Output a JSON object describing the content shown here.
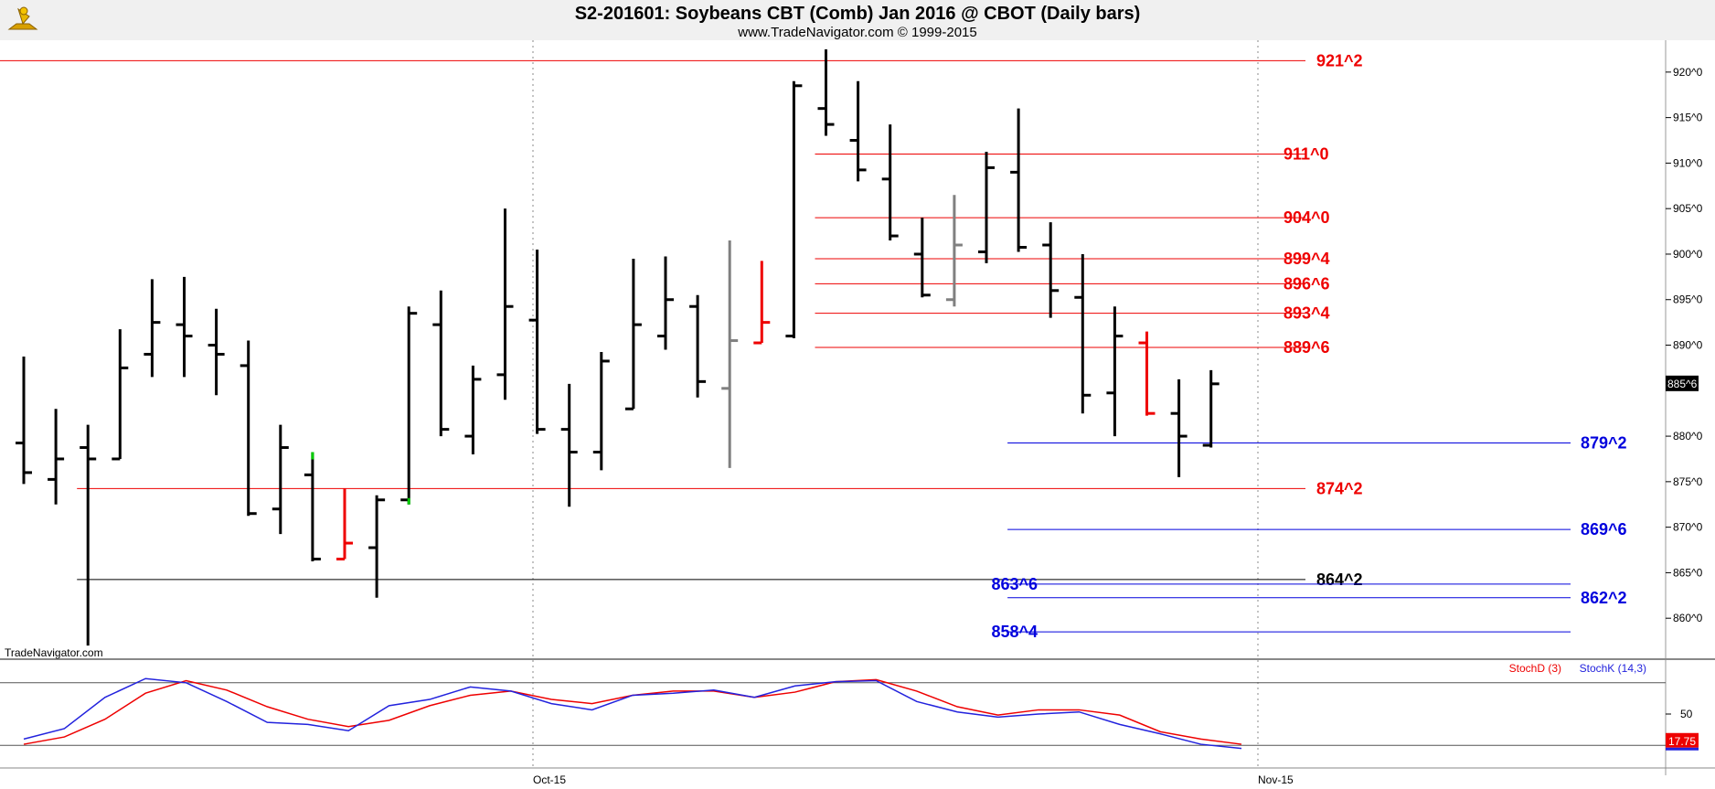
{
  "header": {
    "title": "S2-201601:  Soybeans CBT (Comb) Jan 2016 @ CBOT  (Daily bars)",
    "subtitle": "www.TradeNavigator.com © 1999-2015",
    "watermark": "TradeNavigator.com",
    "logo_icon": "sextant-logo-icon"
  },
  "chart_data": [
    {
      "type": "ohlc",
      "title": "S2-201601:  Soybeans CBT (Comb) Jan 2016 @ CBOT  (Daily bars)",
      "ylim": [
        855.5,
        923.5
      ],
      "y_ticks": [
        {
          "v": 920,
          "label": "920^0"
        },
        {
          "v": 915,
          "label": "915^0"
        },
        {
          "v": 910,
          "label": "910^0"
        },
        {
          "v": 905,
          "label": "905^0"
        },
        {
          "v": 900,
          "label": "900^0"
        },
        {
          "v": 895,
          "label": "895^0"
        },
        {
          "v": 890,
          "label": "890^0"
        },
        {
          "v": 880,
          "label": "880^0"
        },
        {
          "v": 875,
          "label": "875^0"
        },
        {
          "v": 870,
          "label": "870^0"
        },
        {
          "v": 865,
          "label": "865^0"
        },
        {
          "v": 860,
          "label": "860^0"
        }
      ],
      "x_labels": [
        {
          "i": 16,
          "label": "Oct-15"
        },
        {
          "i": 39,
          "label": "Nov-15"
        }
      ],
      "last_price": {
        "v": 885.75,
        "label": "885^6"
      },
      "bar_colors": {
        "normal": "#000000",
        "red": "#ee0000",
        "gray": "#808080",
        "green": "#00cc00"
      },
      "bars": [
        {
          "o": 879.25,
          "h": 888.75,
          "l": 874.75,
          "c": 876.0,
          "color": "normal"
        },
        {
          "o": 875.25,
          "h": 883.0,
          "l": 872.5,
          "c": 877.5,
          "color": "normal"
        },
        {
          "o": 878.75,
          "h": 881.25,
          "l": 857.0,
          "c": 877.5,
          "color": "normal"
        },
        {
          "o": 877.5,
          "h": 891.75,
          "l": 877.5,
          "c": 887.5,
          "color": "normal"
        },
        {
          "o": 889.0,
          "h": 897.25,
          "l": 886.5,
          "c": 892.5,
          "color": "normal"
        },
        {
          "o": 892.25,
          "h": 897.5,
          "l": 886.5,
          "c": 891.0,
          "color": "normal"
        },
        {
          "o": 890.0,
          "h": 894.0,
          "l": 884.5,
          "c": 889.0,
          "color": "normal"
        },
        {
          "o": 887.75,
          "h": 890.5,
          "l": 871.25,
          "c": 871.5,
          "color": "normal"
        },
        {
          "o": 872.0,
          "h": 881.25,
          "l": 869.25,
          "c": 878.75,
          "color": "normal"
        },
        {
          "o": 875.75,
          "h": 878.25,
          "l": 866.25,
          "c": 866.5,
          "color": "normal",
          "high_color": "green"
        },
        {
          "o": 866.5,
          "h": 874.25,
          "l": 866.5,
          "c": 868.25,
          "color": "red"
        },
        {
          "o": 867.75,
          "h": 873.5,
          "l": 862.25,
          "c": 873.0,
          "color": "normal"
        },
        {
          "o": 873.0,
          "h": 894.25,
          "l": 872.5,
          "c": 893.5,
          "color": "normal",
          "low_color": "green"
        },
        {
          "o": 892.25,
          "h": 896.0,
          "l": 880.0,
          "c": 880.75,
          "color": "normal"
        },
        {
          "o": 880.0,
          "h": 887.75,
          "l": 878.0,
          "c": 886.25,
          "color": "normal"
        },
        {
          "o": 886.75,
          "h": 905.0,
          "l": 884.0,
          "c": 894.25,
          "color": "normal"
        },
        {
          "o": 892.75,
          "h": 900.5,
          "l": 880.25,
          "c": 880.75,
          "color": "normal"
        },
        {
          "o": 880.75,
          "h": 885.75,
          "l": 872.25,
          "c": 878.25,
          "color": "normal"
        },
        {
          "o": 878.25,
          "h": 889.25,
          "l": 876.25,
          "c": 888.25,
          "color": "normal"
        },
        {
          "o": 883.0,
          "h": 899.5,
          "l": 883.0,
          "c": 892.25,
          "color": "normal"
        },
        {
          "o": 891.0,
          "h": 899.75,
          "l": 889.5,
          "c": 895.0,
          "color": "normal"
        },
        {
          "o": 894.25,
          "h": 895.5,
          "l": 884.25,
          "c": 886.0,
          "color": "normal"
        },
        {
          "o": 885.25,
          "h": 901.5,
          "l": 876.5,
          "c": 890.5,
          "color": "gray"
        },
        {
          "o": 890.25,
          "h": 899.25,
          "l": 890.25,
          "c": 892.5,
          "color": "red"
        },
        {
          "o": 891.0,
          "h": 919.0,
          "l": 890.75,
          "c": 918.5,
          "color": "normal"
        },
        {
          "o": 916.0,
          "h": 922.5,
          "l": 913.0,
          "c": 914.25,
          "color": "normal"
        },
        {
          "o": 912.5,
          "h": 919.0,
          "l": 908.0,
          "c": 909.25,
          "color": "normal"
        },
        {
          "o": 908.25,
          "h": 914.25,
          "l": 901.5,
          "c": 902.0,
          "color": "normal"
        },
        {
          "o": 900.0,
          "h": 904.0,
          "l": 895.25,
          "c": 895.5,
          "color": "normal"
        },
        {
          "o": 895.0,
          "h": 906.5,
          "l": 894.25,
          "c": 901.0,
          "color": "gray"
        },
        {
          "o": 900.25,
          "h": 911.25,
          "l": 899.0,
          "c": 909.5,
          "color": "normal"
        },
        {
          "o": 909.0,
          "h": 916.0,
          "l": 900.25,
          "c": 900.75,
          "color": "normal"
        },
        {
          "o": 901.0,
          "h": 903.5,
          "l": 893.0,
          "c": 896.0,
          "color": "normal"
        },
        {
          "o": 895.25,
          "h": 900.0,
          "l": 882.5,
          "c": 884.5,
          "color": "normal"
        },
        {
          "o": 884.75,
          "h": 894.25,
          "l": 880.0,
          "c": 891.0,
          "color": "normal"
        },
        {
          "o": 890.25,
          "h": 891.5,
          "l": 882.25,
          "c": 882.5,
          "color": "red"
        },
        {
          "o": 882.5,
          "h": 886.25,
          "l": 875.5,
          "c": 880.0,
          "color": "normal"
        },
        {
          "o": 879.0,
          "h": 887.25,
          "l": 878.75,
          "c": 885.75,
          "color": "normal"
        }
      ],
      "levels": [
        {
          "v": 921.25,
          "label": "921^2",
          "color": "#ee0000",
          "from_bar": -1,
          "label_side": "red"
        },
        {
          "v": 911.0,
          "label": "911^0",
          "color": "#ee0000",
          "from_bar": 25,
          "label_side": "red"
        },
        {
          "v": 904.0,
          "label": "904^0",
          "color": "#ee0000",
          "from_bar": 25,
          "label_side": "red"
        },
        {
          "v": 899.5,
          "label": "899^4",
          "color": "#ee0000",
          "from_bar": 25,
          "label_side": "red"
        },
        {
          "v": 896.75,
          "label": "896^6",
          "color": "#ee0000",
          "from_bar": 25,
          "label_side": "red"
        },
        {
          "v": 893.5,
          "label": "893^4",
          "color": "#ee0000",
          "from_bar": 25,
          "label_side": "red"
        },
        {
          "v": 889.75,
          "label": "889^6",
          "color": "#ee0000",
          "from_bar": 25,
          "label_side": "red"
        },
        {
          "v": 879.25,
          "label": "879^2",
          "color": "#0000dd",
          "from_bar": 31,
          "label_side": "blue"
        },
        {
          "v": 874.25,
          "label": "874^2",
          "color": "#ee0000",
          "from_bar": 2,
          "label_side": "red"
        },
        {
          "v": 869.75,
          "label": "869^6",
          "color": "#0000dd",
          "from_bar": 31,
          "label_side": "blue"
        },
        {
          "v": 864.25,
          "label": "864^2",
          "color": "#000000",
          "from_bar": 2,
          "label_side": "red"
        },
        {
          "v": 863.75,
          "label": "863^6",
          "color": "#0000dd",
          "from_bar": 31,
          "label_side": "left"
        },
        {
          "v": 862.25,
          "label": "862^2",
          "color": "#0000dd",
          "from_bar": 31,
          "label_side": "blue"
        },
        {
          "v": 858.5,
          "label": "858^4",
          "color": "#0000dd",
          "from_bar": 31,
          "label_side": "left"
        }
      ]
    },
    {
      "type": "line",
      "title": "StochD (3)  StochK (14,3)",
      "ylim": [
        0,
        100
      ],
      "y_ticks": [
        {
          "v": 50,
          "label": "50"
        }
      ],
      "bands": [
        20,
        80
      ],
      "last_value": {
        "v": 17.75,
        "label": "17.75"
      },
      "series": [
        {
          "name": "StochD (3)",
          "color": "#ee0000",
          "values": [
            20,
            23,
            27,
            32,
            40,
            50,
            68,
            76,
            82,
            80,
            75,
            68,
            60,
            50,
            42,
            36,
            37,
            45,
            56,
            65,
            73,
            74,
            67,
            60,
            60,
            61,
            64,
            66,
            65,
            63,
            60,
            57,
            50,
            43,
            37,
            35,
            40,
            45,
            55,
            62,
            70,
            74,
            73,
            67,
            60,
            52,
            45,
            38,
            33,
            28,
            24,
            21,
            19,
            18
          ]
        }
      ]
    }
  ],
  "stoch": {
    "d_label": "StochD (3)",
    "k_label": "StochK (14,3)",
    "d_color": "#ee0000",
    "k_color": "#2222dd",
    "last_label": "17.75",
    "d_values": [
      21,
      28,
      45,
      70,
      82,
      73,
      57,
      45,
      38,
      44,
      58,
      68,
      72,
      64,
      60,
      68,
      72,
      72,
      66,
      71,
      81,
      83,
      72,
      57,
      49,
      54,
      54,
      49,
      33,
      26,
      21
    ],
    "k_values": [
      26,
      36,
      66,
      84,
      80,
      62,
      42,
      40,
      34,
      58,
      64,
      76,
      72,
      60,
      54,
      68,
      70,
      73,
      66,
      77,
      81,
      82,
      62,
      52,
      47,
      50,
      52,
      40,
      31,
      21,
      17
    ]
  }
}
